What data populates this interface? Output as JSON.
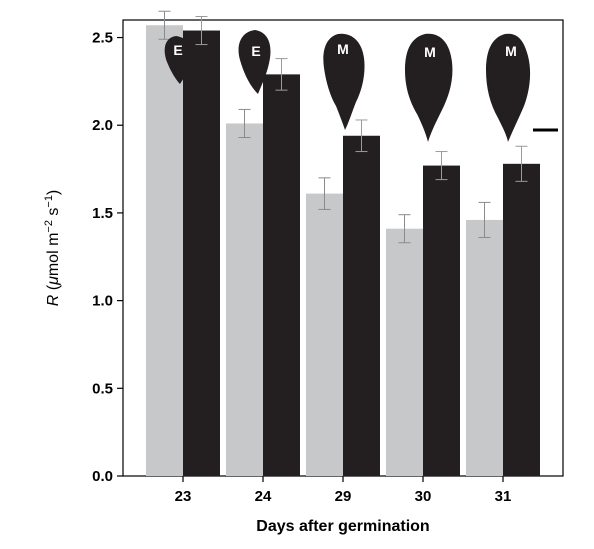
{
  "chart_data": {
    "type": "bar",
    "categories": [
      "23",
      "24",
      "29",
      "30",
      "31"
    ],
    "series": [
      {
        "color": "#c7c8ca",
        "values": [
          2.57,
          2.01,
          1.61,
          1.41,
          1.46
        ],
        "errors": [
          0.08,
          0.08,
          0.09,
          0.08,
          0.1
        ]
      },
      {
        "color": "#231f20",
        "values": [
          2.54,
          2.29,
          1.94,
          1.77,
          1.78
        ],
        "errors": [
          0.08,
          0.09,
          0.09,
          0.08,
          0.1
        ]
      }
    ],
    "xlabel": "Days after germination",
    "ylabel": {
      "symbol": "R",
      "open": " (",
      "mu": "μ",
      "unit1": "mol m",
      "exp1": "−2",
      "unit2": " s",
      "exp2": "−1",
      "close": ")"
    },
    "ylim": [
      0,
      2.6
    ],
    "yticks": [
      "0.0",
      "0.5",
      "1.0",
      "1.5",
      "2.0",
      "2.5"
    ],
    "ytick_values": [
      0,
      0.5,
      1.0,
      1.5,
      2.0,
      2.5
    ],
    "grid": false,
    "legend": "none",
    "leaf_labels": [
      "E",
      "E",
      "M",
      "M",
      "M"
    ]
  }
}
